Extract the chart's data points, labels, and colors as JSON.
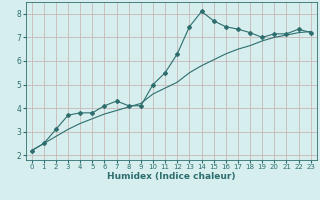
{
  "title": "",
  "xlabel": "Humidex (Indice chaleur)",
  "ylabel": "",
  "bg_color": "#d6eeee",
  "grid_color": "#c8b8b8",
  "line_color": "#2e6e6e",
  "xlim": [
    -0.5,
    23.5
  ],
  "ylim": [
    1.8,
    8.5
  ],
  "xticks": [
    0,
    1,
    2,
    3,
    4,
    5,
    6,
    7,
    8,
    9,
    10,
    11,
    12,
    13,
    14,
    15,
    16,
    17,
    18,
    19,
    20,
    21,
    22,
    23
  ],
  "yticks": [
    2,
    3,
    4,
    5,
    6,
    7,
    8
  ],
  "main_x": [
    0,
    1,
    2,
    3,
    4,
    5,
    6,
    7,
    8,
    9,
    10,
    11,
    12,
    13,
    14,
    15,
    16,
    17,
    18,
    19,
    20,
    21,
    22,
    23
  ],
  "main_y": [
    2.2,
    2.5,
    3.1,
    3.7,
    3.8,
    3.8,
    4.1,
    4.3,
    4.1,
    4.1,
    5.0,
    5.5,
    6.3,
    7.45,
    8.1,
    7.7,
    7.45,
    7.35,
    7.2,
    7.0,
    7.15,
    7.15,
    7.35,
    7.2
  ],
  "trend_x": [
    0,
    1,
    2,
    3,
    4,
    5,
    6,
    7,
    8,
    9,
    10,
    11,
    12,
    13,
    14,
    15,
    16,
    17,
    18,
    19,
    20,
    21,
    22,
    23
  ],
  "trend_y": [
    2.2,
    2.5,
    2.8,
    3.1,
    3.35,
    3.55,
    3.75,
    3.9,
    4.05,
    4.2,
    4.6,
    4.85,
    5.1,
    5.5,
    5.8,
    6.05,
    6.3,
    6.5,
    6.65,
    6.85,
    7.0,
    7.1,
    7.2,
    7.25
  ]
}
